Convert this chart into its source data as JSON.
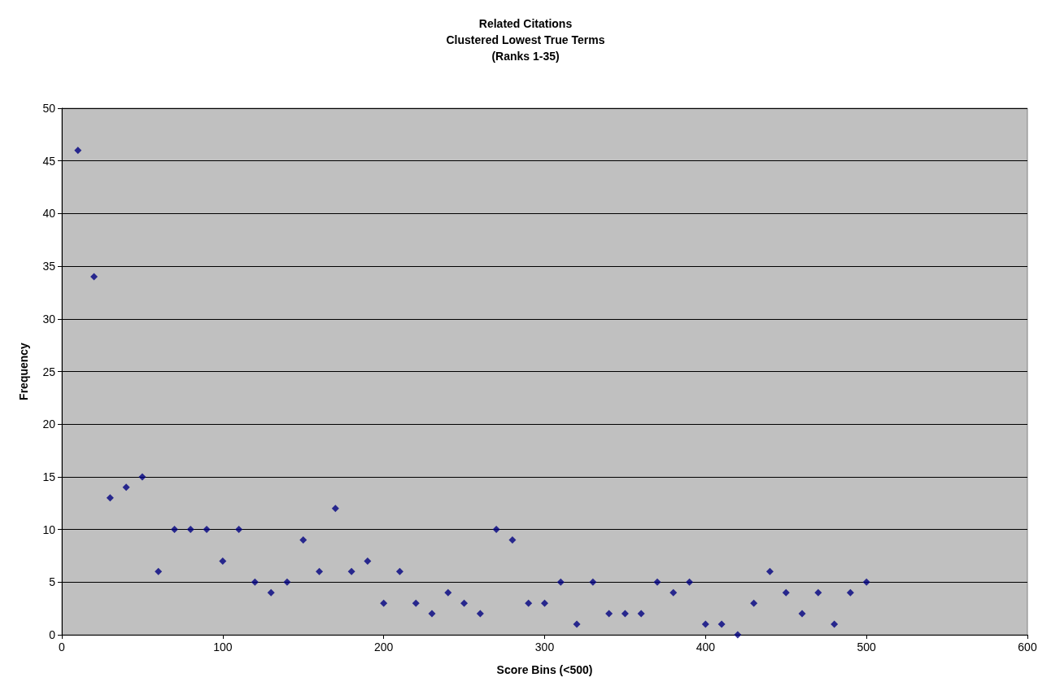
{
  "chart_data": {
    "type": "scatter",
    "title": "Related Citations\nClustered Lowest True Terms\n(Ranks 1-35)",
    "xlabel": "Score Bins (<500)",
    "ylabel": "Frequency",
    "x": [
      10,
      20,
      30,
      40,
      50,
      60,
      70,
      80,
      90,
      100,
      110,
      120,
      130,
      140,
      150,
      160,
      170,
      180,
      190,
      200,
      210,
      220,
      230,
      240,
      250,
      260,
      270,
      280,
      290,
      300,
      310,
      320,
      330,
      340,
      350,
      360,
      370,
      380,
      390,
      400,
      410,
      420,
      430,
      440,
      450,
      460,
      470,
      480,
      490,
      500
    ],
    "values": [
      46,
      34,
      13,
      14,
      15,
      6,
      10,
      10,
      10,
      7,
      10,
      5,
      4,
      5,
      9,
      6,
      12,
      6,
      7,
      3,
      6,
      3,
      2,
      4,
      3,
      2,
      10,
      9,
      3,
      3,
      5,
      1,
      5,
      2,
      2,
      2,
      5,
      4,
      5,
      1,
      1,
      0,
      3,
      6,
      4,
      2,
      4,
      1,
      4,
      5
    ],
    "color": "#000080",
    "marker": "diamond",
    "xlim": [
      0,
      600
    ],
    "xticks": [
      0,
      100,
      200,
      300,
      400,
      500,
      600
    ],
    "ylim": [
      0,
      50
    ],
    "yticks": [
      0,
      5,
      10,
      15,
      20,
      25,
      30,
      35,
      40,
      45,
      50
    ],
    "grid": "y"
  }
}
